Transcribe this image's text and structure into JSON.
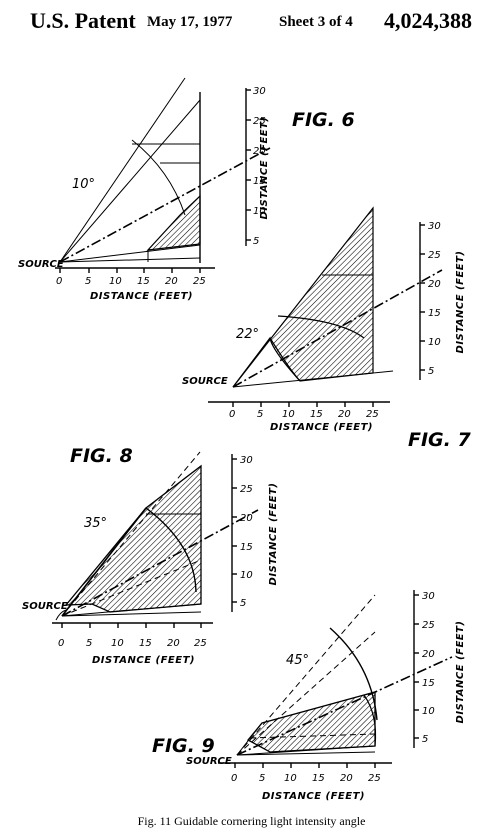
{
  "header": {
    "patent_label": "U.S. Patent",
    "date": "May 17, 1977",
    "sheet": "Sheet 3 of 4",
    "patent_number": "4,024,388"
  },
  "caption": "Fig. 11 Guidable cornering light intensity angle",
  "figures": [
    {
      "label": "FIG. 6",
      "angle": "10°",
      "source_label": "SOURCE",
      "x_axis": {
        "title": "DISTANCE (FEET)",
        "ticks": [
          "0",
          "5",
          "10",
          "15",
          "20",
          "25"
        ]
      },
      "y_axis": {
        "title": "DISTANCE (FEET)",
        "ticks": [
          "5",
          "10",
          "15",
          "20",
          "25",
          "30"
        ]
      }
    },
    {
      "label": "FIG. 7",
      "angle": "22°",
      "source_label": "SOURCE",
      "x_axis": {
        "title": "DISTANCE (FEET)",
        "ticks": [
          "0",
          "5",
          "10",
          "15",
          "20",
          "25"
        ]
      },
      "y_axis": {
        "title": "DISTANCE (FEET)",
        "ticks": [
          "5",
          "10",
          "15",
          "20",
          "25",
          "30"
        ]
      }
    },
    {
      "label": "FIG. 8",
      "angle": "35°",
      "source_label": "SOURCE",
      "x_axis": {
        "title": "DISTANCE (FEET)",
        "ticks": [
          "0",
          "5",
          "10",
          "15",
          "20",
          "25"
        ]
      },
      "y_axis": {
        "title": "DISTANCE (FEET)",
        "ticks": [
          "5",
          "10",
          "15",
          "20",
          "25",
          "30"
        ]
      }
    },
    {
      "label": "FIG. 9",
      "angle": "45°",
      "source_label": "SOURCE",
      "x_axis": {
        "title": "DISTANCE (FEET)",
        "ticks": [
          "0",
          "5",
          "10",
          "15",
          "20",
          "25"
        ]
      },
      "y_axis": {
        "title": "DISTANCE (FEET)",
        "ticks": [
          "5",
          "10",
          "15",
          "20",
          "25",
          "30"
        ]
      }
    }
  ],
  "colors": {
    "ink": "#000000",
    "paper": "#ffffff"
  }
}
